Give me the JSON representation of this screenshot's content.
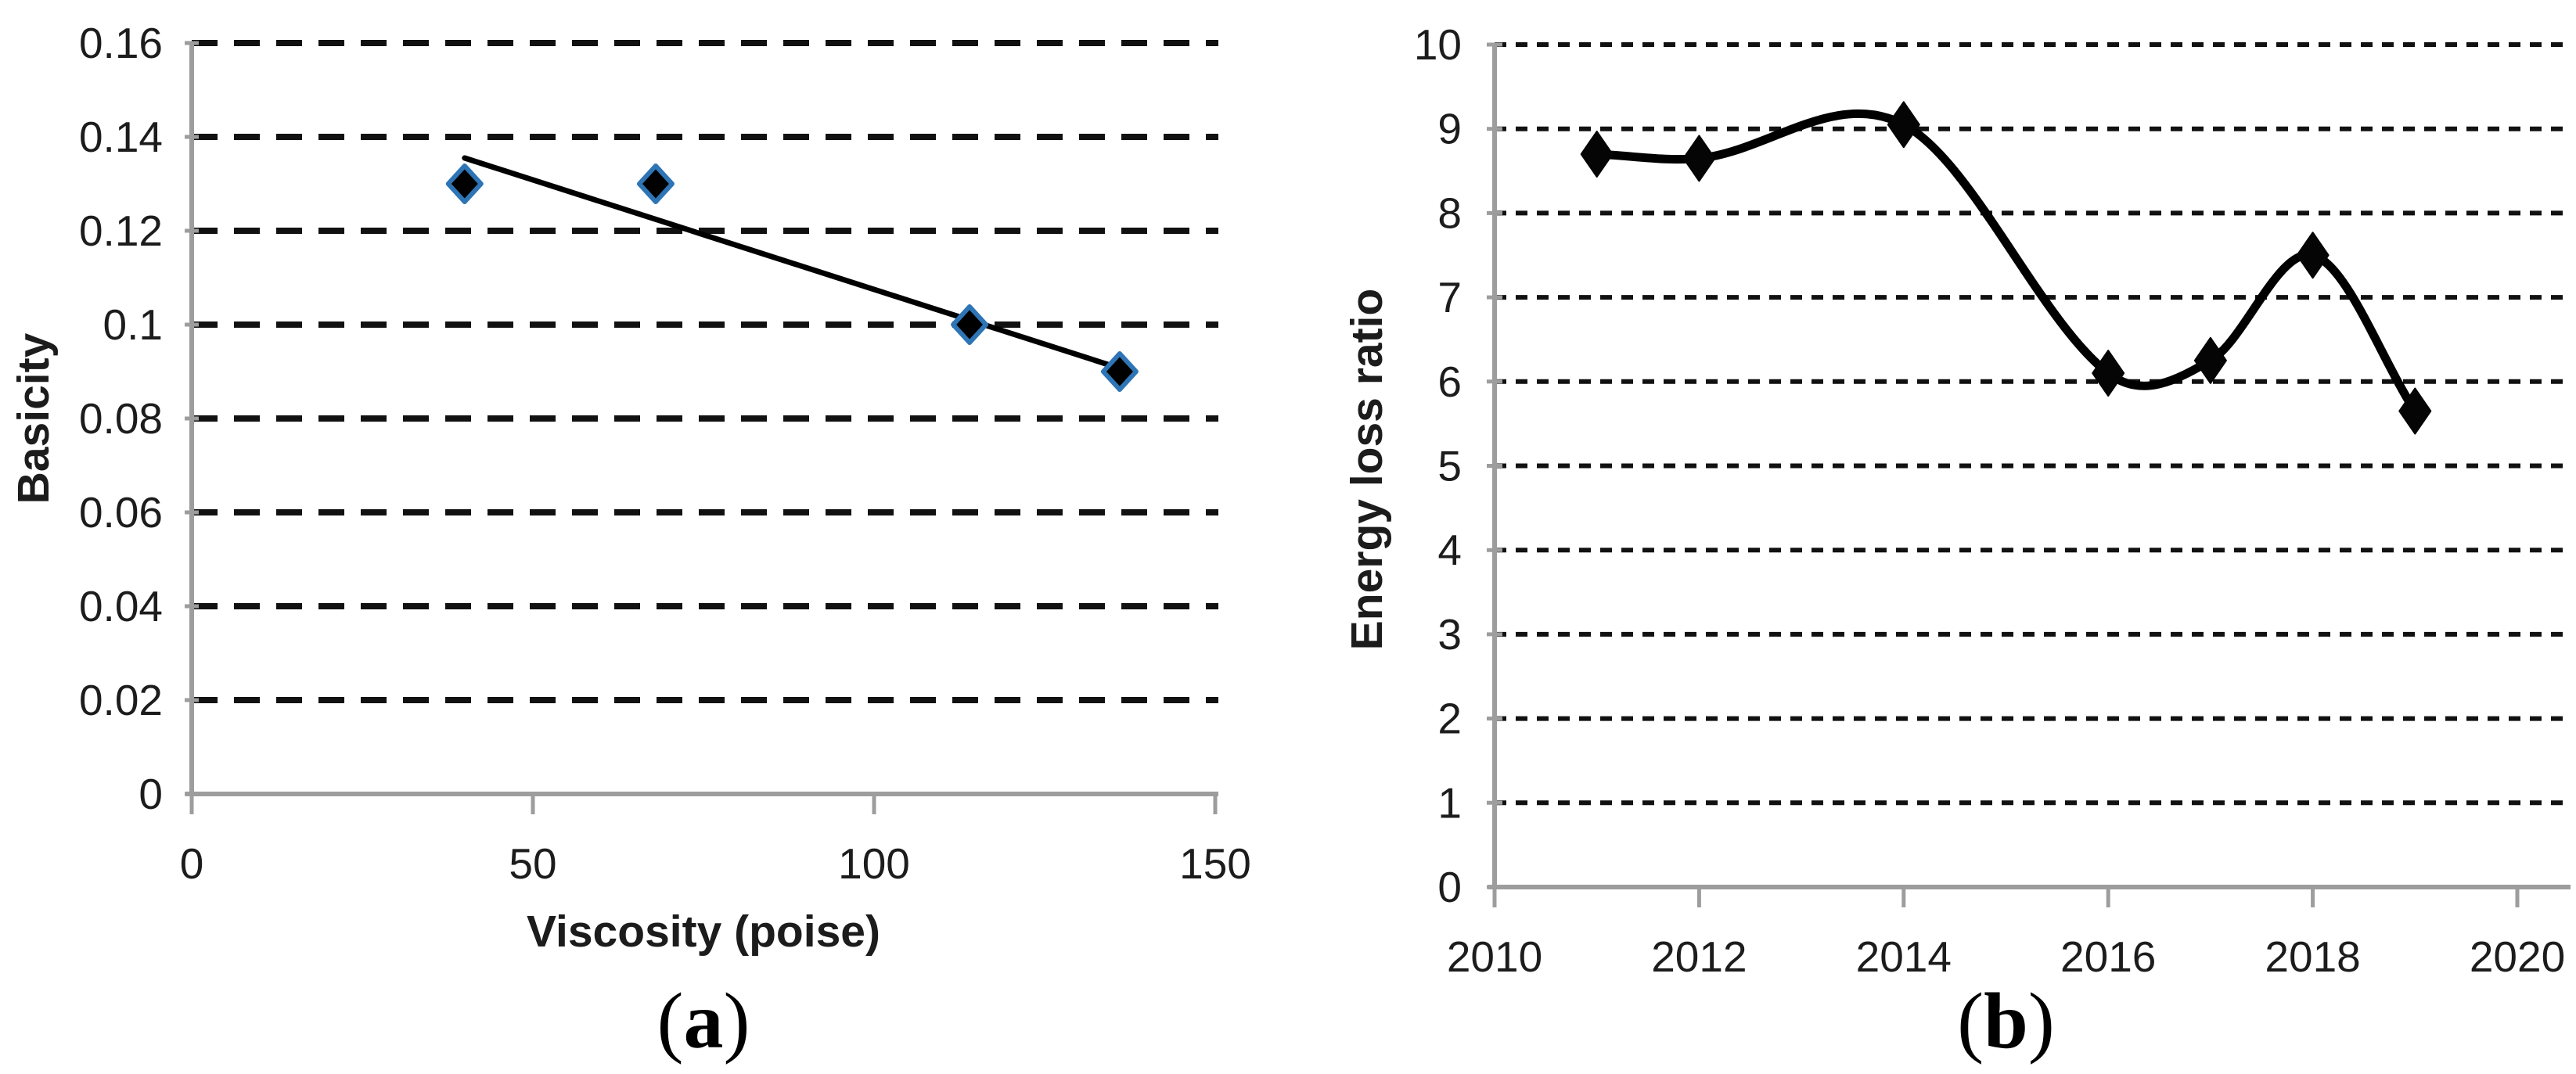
{
  "page": {
    "background_color": "#ffffff",
    "text_color": "#1c1c1c",
    "axis_color": "#9d9d9d"
  },
  "captions": {
    "a": {
      "open": "(",
      "letter": "a",
      "close": ")"
    },
    "b": {
      "open": "(",
      "letter": "b",
      "close": ")"
    }
  },
  "chart_data": [
    {
      "id": "a",
      "type": "scatter",
      "title": "",
      "xlabel": "Viscosity (poise)",
      "ylabel": "Basicity",
      "x": [
        40,
        68,
        114,
        136
      ],
      "y": [
        0.13,
        0.13,
        0.1,
        0.09
      ],
      "trendline": {
        "x1": 40,
        "y1": 0.1355,
        "x2": 137.5,
        "y2": 0.09
      },
      "xlim": [
        0,
        150
      ],
      "ylim": [
        0,
        0.16
      ],
      "xticks": {
        "values": [
          0,
          50,
          100,
          150
        ],
        "labels": [
          "0",
          "50",
          "100",
          "150"
        ]
      },
      "yticks": {
        "values": [
          0,
          0.02,
          0.04,
          0.06,
          0.08,
          0.1,
          0.12,
          0.14,
          0.16
        ],
        "labels": [
          "0",
          "0.02",
          "0.04",
          "0.06",
          "0.08",
          "0.1",
          "0.12",
          "0.14",
          "0.16"
        ]
      },
      "grid": "horizontal dashed black",
      "legend": "none",
      "marker": {
        "shape": "diamond",
        "fill": "#000000",
        "stroke": "#2e75b6"
      },
      "trendline_color": "#000000",
      "axis_color": "#9d9d9d"
    },
    {
      "id": "b",
      "type": "line",
      "title": "",
      "xlabel": "",
      "ylabel": "Energy loss ratio",
      "x": [
        2011,
        2012,
        2014,
        2016,
        2017,
        2018,
        2019
      ],
      "y": [
        8.7,
        8.65,
        9.05,
        6.1,
        6.25,
        7.5,
        5.65
      ],
      "smooth": true,
      "xlim": [
        2010,
        2020
      ],
      "ylim": [
        0,
        10
      ],
      "xticks": {
        "values": [
          2010,
          2012,
          2014,
          2016,
          2018,
          2020
        ],
        "labels": [
          "2010",
          "2012",
          "2014",
          "2016",
          "2018",
          "2020"
        ]
      },
      "yticks": {
        "values": [
          0,
          1,
          2,
          3,
          4,
          5,
          6,
          7,
          8,
          9,
          10
        ],
        "labels": [
          "0",
          "1",
          "2",
          "3",
          "4",
          "5",
          "6",
          "7",
          "8",
          "9",
          "10"
        ]
      },
      "grid": "horizontal dashed black",
      "legend": "none",
      "marker": {
        "shape": "diamond",
        "fill": "#050505",
        "stroke": "#050505"
      },
      "line_color": "#000000",
      "axis_color": "#9d9d9d"
    }
  ]
}
